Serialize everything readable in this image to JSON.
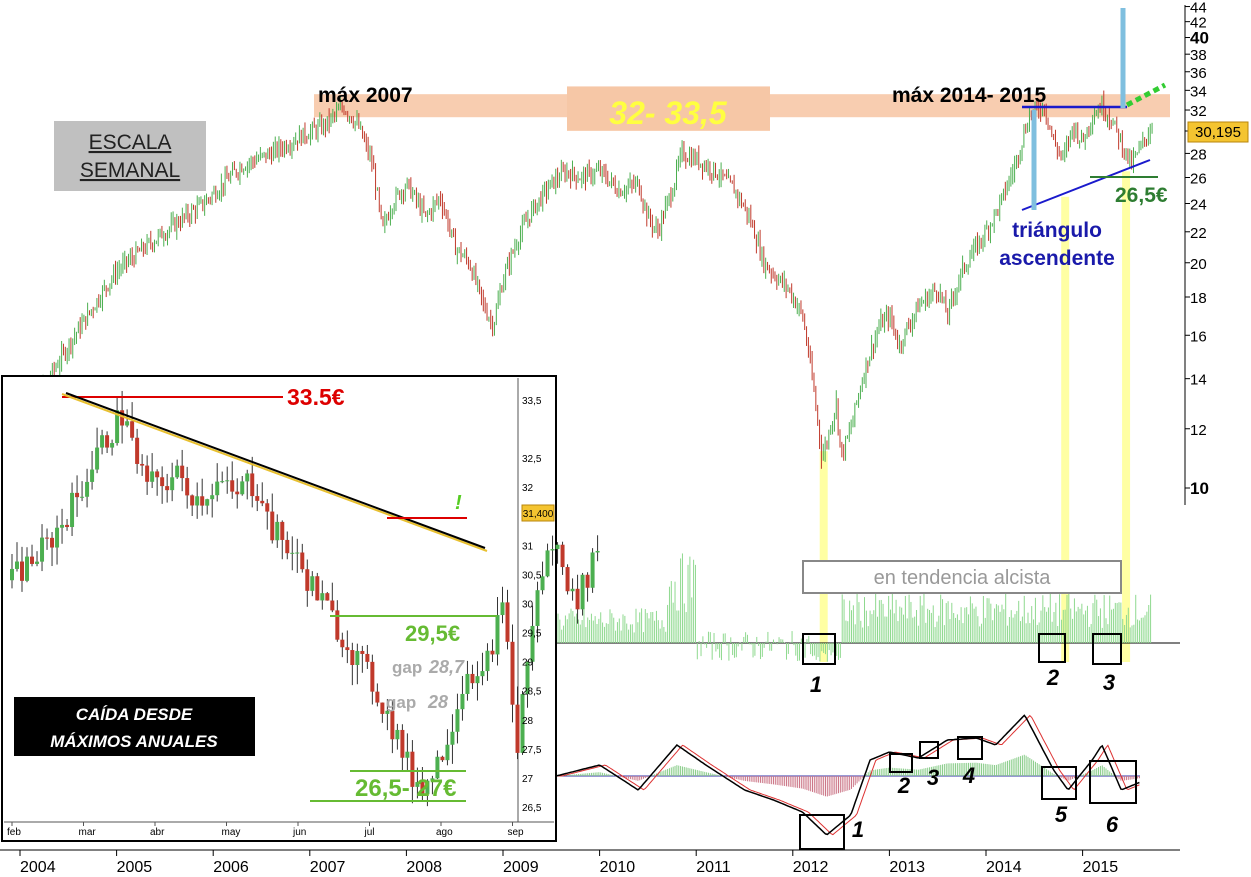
{
  "chart_data": [
    {
      "type": "line",
      "description_kind": "weekly candlestick price chart with oscillator panels",
      "scale": "log",
      "ylim": [
        9,
        44
      ],
      "xlim": [
        2003.9,
        2016.1
      ],
      "x_ticks": [
        "2004",
        "2005",
        "2006",
        "2007",
        "2008",
        "2009",
        "2010",
        "2011",
        "2012",
        "2013",
        "2014",
        "2015"
      ],
      "y_ticks": [
        "44",
        "42",
        "40",
        "38",
        "36",
        "34",
        "32",
        "30",
        "28",
        "26",
        "24",
        "22",
        "20",
        "18",
        "16",
        "14",
        "12",
        "10"
      ],
      "last_price_label": "30,195",
      "price_path": [
        [
          2003.95,
          12.5
        ],
        [
          2004.3,
          14.0
        ],
        [
          2004.7,
          17.0
        ],
        [
          2005.0,
          19.5
        ],
        [
          2005.5,
          22.0
        ],
        [
          2005.9,
          24.0
        ],
        [
          2006.3,
          27.0
        ],
        [
          2006.6,
          28.0
        ],
        [
          2006.9,
          29.5
        ],
        [
          2007.15,
          30.5
        ],
        [
          2007.35,
          32.3
        ],
        [
          2007.5,
          30.5
        ],
        [
          2007.65,
          27.0
        ],
        [
          2007.75,
          22.0
        ],
        [
          2007.85,
          24.0
        ],
        [
          2008.0,
          25.5
        ],
        [
          2008.2,
          23.0
        ],
        [
          2008.35,
          24.5
        ],
        [
          2008.5,
          21.0
        ],
        [
          2008.65,
          20.0
        ],
        [
          2008.8,
          17.5
        ],
        [
          2008.9,
          16.5
        ],
        [
          2009.0,
          19.0
        ],
        [
          2009.15,
          21.5
        ],
        [
          2009.3,
          23.5
        ],
        [
          2009.5,
          25.5
        ],
        [
          2009.65,
          26.5
        ],
        [
          2009.8,
          26.0
        ],
        [
          2010.0,
          26.5
        ],
        [
          2010.2,
          25.0
        ],
        [
          2010.4,
          25.5
        ],
        [
          2010.5,
          23.0
        ],
        [
          2010.6,
          22.0
        ],
        [
          2010.75,
          25.0
        ],
        [
          2010.85,
          28.0
        ],
        [
          2011.0,
          27.5
        ],
        [
          2011.2,
          26.5
        ],
        [
          2011.4,
          25.0
        ],
        [
          2011.55,
          23.0
        ],
        [
          2011.7,
          20.0
        ],
        [
          2011.85,
          19.0
        ],
        [
          2011.95,
          18.5
        ],
        [
          2012.1,
          17.0
        ],
        [
          2012.2,
          14.0
        ],
        [
          2012.3,
          11.0
        ],
        [
          2012.35,
          11.5
        ],
        [
          2012.45,
          13.0
        ],
        [
          2012.5,
          11.0
        ],
        [
          2012.6,
          12.0
        ],
        [
          2012.75,
          14.5
        ],
        [
          2012.9,
          16.5
        ],
        [
          2013.0,
          17.0
        ],
        [
          2013.1,
          15.5
        ],
        [
          2013.3,
          17.5
        ],
        [
          2013.5,
          18.5
        ],
        [
          2013.6,
          17.0
        ],
        [
          2013.75,
          19.5
        ],
        [
          2013.9,
          21.0
        ],
        [
          2014.0,
          22.0
        ],
        [
          2014.15,
          24.0
        ],
        [
          2014.3,
          27.0
        ],
        [
          2014.45,
          31.5
        ],
        [
          2014.6,
          32.5
        ],
        [
          2014.7,
          29.0
        ],
        [
          2014.8,
          27.5
        ],
        [
          2014.9,
          30.5
        ],
        [
          2015.0,
          29.0
        ],
        [
          2015.1,
          31.5
        ],
        [
          2015.2,
          32.5
        ],
        [
          2015.3,
          31.0
        ],
        [
          2015.4,
          29.0
        ],
        [
          2015.5,
          27.0
        ],
        [
          2015.6,
          28.5
        ],
        [
          2015.7,
          30.2
        ]
      ],
      "annotations": {
        "resistance_left_label": "máx 2007",
        "resistance_right_label": "máx 2014- 2015",
        "resistance_zone_label": "32- 33,5",
        "scale_box": [
          "ESCALA",
          "SEMANAL"
        ],
        "triangle_label": [
          "triángulo",
          "ascendente"
        ],
        "support_label": "26,5€",
        "trend_box": "en tendencia alcista",
        "osc1_markers": [
          "1",
          "2",
          "3"
        ],
        "osc2_markers": [
          "1",
          "2",
          "3",
          "4",
          "5",
          "6"
        ]
      },
      "colors": {
        "up": "#4caf50",
        "down": "#c0392b",
        "zone": "#f8cdb0",
        "zone_text": "#ffff40",
        "highlight": "#ffff99",
        "triangle": "#1a1acc",
        "target": "#33cc33",
        "support": "#2e7d32"
      }
    },
    {
      "type": "line",
      "description_kind": "inset daily candlestick chart",
      "ylim": [
        26.3,
        33.9
      ],
      "x_ticks": [
        "feb",
        "mar",
        "abr",
        "may",
        "jun",
        "jul",
        "ago",
        "sep"
      ],
      "y_ticks": [
        "33,5",
        "32,5",
        "32",
        "31",
        "30,5",
        "30",
        "29,5",
        "29",
        "28,5",
        "28",
        "27,5",
        "27",
        "26,5"
      ],
      "last_price_label": "31,400",
      "price_path": [
        [
          0.0,
          30.4
        ],
        [
          0.5,
          31.0
        ],
        [
          0.9,
          31.8
        ],
        [
          1.2,
          32.6
        ],
        [
          1.45,
          33.1
        ],
        [
          1.6,
          33.3
        ],
        [
          1.75,
          32.3
        ],
        [
          2.0,
          32.0
        ],
        [
          2.3,
          32.2
        ],
        [
          2.6,
          31.8
        ],
        [
          2.9,
          32.1
        ],
        [
          3.1,
          31.8
        ],
        [
          3.3,
          32.1
        ],
        [
          3.5,
          31.9
        ],
        [
          3.6,
          31.3
        ],
        [
          3.85,
          31.0
        ],
        [
          4.1,
          30.5
        ],
        [
          4.35,
          30.0
        ],
        [
          4.6,
          29.5
        ],
        [
          4.85,
          29.0
        ],
        [
          5.1,
          28.5
        ],
        [
          5.35,
          27.8
        ],
        [
          5.6,
          27.0
        ],
        [
          5.8,
          26.9
        ],
        [
          6.0,
          27.4
        ],
        [
          6.2,
          28.2
        ],
        [
          6.4,
          29.0
        ],
        [
          6.55,
          28.5
        ],
        [
          6.7,
          29.3
        ],
        [
          6.9,
          30.0
        ],
        [
          7.05,
          27.3
        ],
        [
          7.2,
          29.0
        ],
        [
          7.4,
          30.5
        ],
        [
          7.55,
          31.0
        ],
        [
          7.7,
          30.8
        ],
        [
          7.85,
          30.0
        ],
        [
          8.0,
          30.3
        ],
        [
          8.15,
          30.9
        ],
        [
          8.25,
          31.1
        ]
      ],
      "annotations": {
        "resistance_label": "33.5€",
        "level_295": "29,5€",
        "gap1_prefix": "gap",
        "gap1_value": "28,7",
        "gap2_prefix": "gap",
        "gap2_value": "28",
        "support_range": "26,5- 27€",
        "exclamation": "!",
        "title_box": [
          "CAÍDA DESDE",
          "MÁXIMOS ANUALES"
        ]
      }
    }
  ]
}
